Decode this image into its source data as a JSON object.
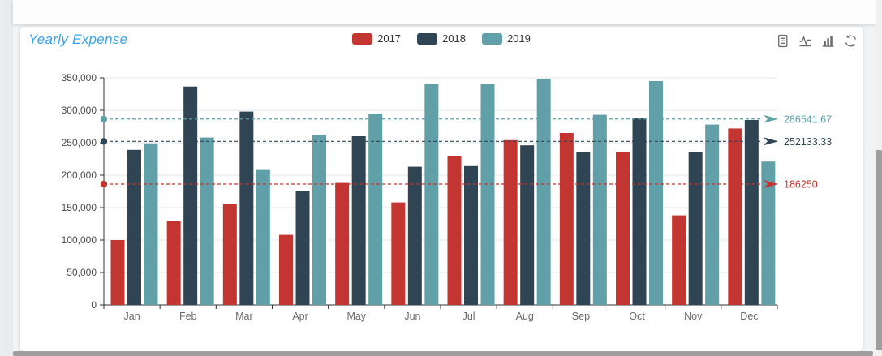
{
  "header": {
    "title": "Yearly Expense",
    "title_color": "#3aa2e8"
  },
  "legend": {
    "items": [
      {
        "label": "2017",
        "color": "#c23531"
      },
      {
        "label": "2018",
        "color": "#2f4554"
      },
      {
        "label": "2019",
        "color": "#61a0a8"
      }
    ]
  },
  "toolbox": {
    "icons": [
      "data-view-icon",
      "line-chart-icon",
      "bar-chart-icon",
      "restore-icon"
    ]
  },
  "chart_data": {
    "type": "bar",
    "title": "Yearly Expense",
    "categories": [
      "Jan",
      "Feb",
      "Mar",
      "Apr",
      "May",
      "Jun",
      "Jul",
      "Aug",
      "Sep",
      "Oct",
      "Nov",
      "Dec"
    ],
    "series": [
      {
        "name": "2017",
        "color": "#c23531",
        "values": [
          100000,
          130000,
          156000,
          108000,
          188000,
          158000,
          230000,
          254000,
          265000,
          236000,
          138000,
          272000
        ],
        "average": 186250,
        "average_label": "186250"
      },
      {
        "name": "2018",
        "color": "#2f4554",
        "values": [
          239000,
          336600,
          298000,
          176000,
          260000,
          213000,
          214000,
          246000,
          235000,
          288000,
          235000,
          285000
        ],
        "average": 252133.33,
        "average_label": "252133.33"
      },
      {
        "name": "2019",
        "color": "#61a0a8",
        "values": [
          249000,
          258000,
          208000,
          262000,
          295000,
          341000,
          340000,
          348500,
          293000,
          345000,
          278000,
          221000
        ],
        "average": 286541.67,
        "average_label": "286541.67"
      }
    ],
    "ylim": [
      0,
      350000
    ],
    "ytick_step": 50000,
    "ytick_labels": [
      "0",
      "50,000",
      "100,000",
      "150,000",
      "200,000",
      "250,000",
      "300,000",
      "350,000"
    ],
    "grid": true,
    "legend_position": "top-center",
    "average_line_style": "dashed, series color, dot on axis, right arrow with value label"
  }
}
